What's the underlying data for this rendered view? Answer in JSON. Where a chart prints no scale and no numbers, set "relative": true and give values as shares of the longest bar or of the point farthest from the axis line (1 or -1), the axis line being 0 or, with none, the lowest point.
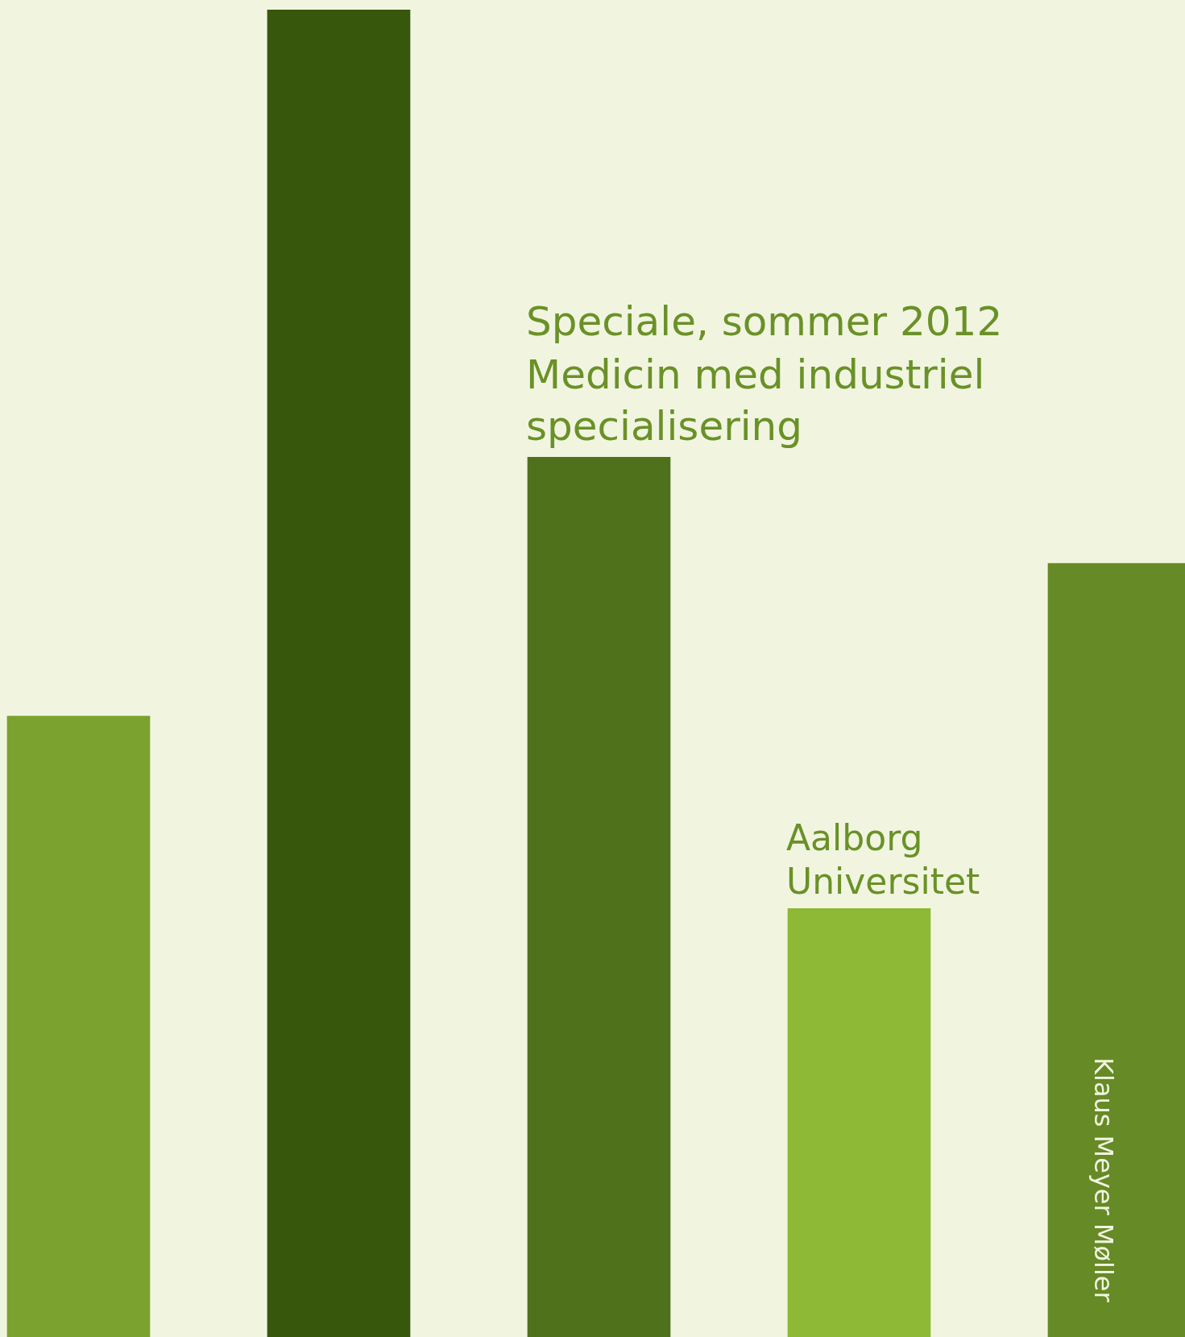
{
  "chart_data": {
    "type": "bar",
    "relative": true,
    "title": "Speciale, sommer 2012",
    "subtitle": "Medicin med industriel specialisering",
    "annotations": [
      "Aalborg Universitet",
      "Klaus Meyer Møller"
    ],
    "categories": [
      null,
      null,
      null,
      null,
      null
    ],
    "values": [
      0.468,
      1,
      0.663,
      0.323,
      0.583
    ],
    "colors": [
      "#7ba22e",
      "#37570d",
      "#4f711c",
      "#8db936",
      "#668a26"
    ]
  }
}
